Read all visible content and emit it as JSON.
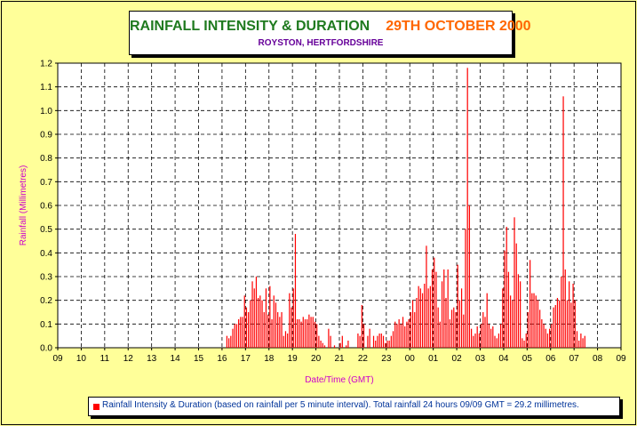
{
  "title": {
    "main": "RAINFALL INTENSITY & DURATION",
    "date": "29TH OCTOBER 2000",
    "subtitle": "ROYSTON, HERTFORDSHIRE"
  },
  "legend": {
    "text": "Rainfall Intensity & Duration (based on rainfall per 5 minute interval). Total rainfall 24 hours 09/09 GMT =  29.2 millimetres."
  },
  "colors": {
    "background": "#ffff99",
    "bars": "#ff0000",
    "title_main": "#1f7a1f",
    "title_date": "#ff6600",
    "subtitle": "#660099",
    "axis_labels": "#cc00cc",
    "legend_text": "#003399"
  },
  "chart_data": {
    "type": "bar",
    "xlabel": "Date/Time (GMT)",
    "ylabel": "Rainfall (Millimetres)",
    "ylim": [
      0,
      1.2
    ],
    "yticks": [
      "0.0",
      "0.1",
      "0.2",
      "0.3",
      "0.4",
      "0.5",
      "0.6",
      "0.7",
      "0.8",
      "0.9",
      "1.0",
      "1.1",
      "1.2"
    ],
    "xticks": [
      "09",
      "10",
      "11",
      "12",
      "13",
      "14",
      "15",
      "16",
      "17",
      "18",
      "19",
      "20",
      "21",
      "22",
      "23",
      "00",
      "01",
      "02",
      "03",
      "04",
      "05",
      "06",
      "07",
      "08",
      "09"
    ],
    "grid": true,
    "legend_position": "bottom",
    "interval_minutes": 5,
    "first_interval_label": "16:10",
    "values": [
      0.05,
      0.04,
      0.05,
      0.08,
      0.1,
      0.1,
      0.12,
      0.13,
      0.13,
      0.22,
      0.17,
      0.15,
      0.2,
      0.28,
      0.25,
      0.3,
      0.21,
      0.22,
      0.2,
      0.15,
      0.25,
      0.14,
      0.26,
      0.12,
      0.22,
      0.19,
      0.15,
      0.13,
      0.15,
      0.05,
      0.07,
      0.06,
      0.23,
      0.17,
      0.25,
      0.48,
      0.12,
      0.12,
      0.11,
      0.13,
      0.12,
      0.12,
      0.14,
      0.13,
      0.13,
      0.11,
      0.1,
      0.05,
      0.03,
      0.02,
      0.01,
      0.0,
      0.08,
      0.05,
      0.0,
      0.01,
      0.0,
      0.0,
      0.02,
      0.05,
      0.0,
      0.01,
      0.03,
      0.0,
      0.0,
      0.0,
      0.0,
      0.06,
      0.05,
      0.18,
      0.1,
      0.0,
      0.05,
      0.08,
      0.0,
      0.05,
      0.03,
      0.05,
      0.06,
      0.06,
      0.05,
      0.02,
      0.03,
      0.03,
      0.05,
      0.07,
      0.11,
      0.1,
      0.12,
      0.1,
      0.13,
      0.09,
      0.11,
      0.12,
      0.15,
      0.2,
      0.15,
      0.21,
      0.26,
      0.25,
      0.23,
      0.27,
      0.43,
      0.25,
      0.26,
      0.33,
      0.38,
      0.32,
      0.17,
      0.11,
      0.28,
      0.33,
      0.21,
      0.33,
      0.12,
      0.16,
      0.17,
      0.15,
      0.35,
      0.2,
      0.25,
      0.14,
      0.5,
      1.18,
      0.6,
      0.08,
      0.05,
      0.06,
      0.09,
      0.06,
      0.1,
      0.15,
      0.13,
      0.23,
      0.1,
      0.08,
      0.09,
      0.05,
      0.04,
      0.06,
      0.1,
      0.25,
      0.41,
      0.51,
      0.32,
      0.22,
      0.2,
      0.55,
      0.44,
      0.31,
      0.28,
      0.04,
      0.03,
      0.06,
      0.15,
      0.37,
      0.23,
      0.23,
      0.22,
      0.2,
      0.16,
      0.12,
      0.1,
      0.08,
      0.06,
      0.08,
      0.1,
      0.17,
      0.18,
      0.21,
      0.2,
      0.3,
      1.06,
      0.33,
      0.2,
      0.28,
      0.19,
      0.27,
      0.2,
      0.07,
      0.03,
      0.06,
      0.04,
      0.05
    ]
  }
}
